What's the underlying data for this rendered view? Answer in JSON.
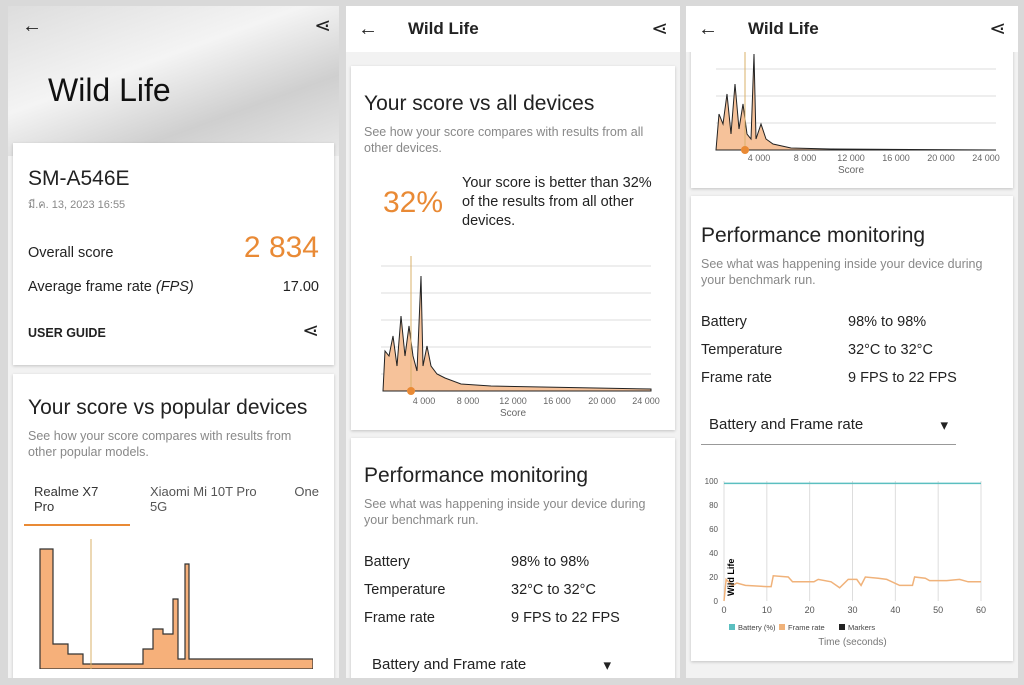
{
  "app_title": "Wild Life",
  "icons": {
    "back": "arrow-left-icon",
    "share": "share-icon"
  },
  "colors": {
    "accent": "#e98a35",
    "battery": "#5bbfc0",
    "frame_rate": "#f0b27a"
  },
  "result": {
    "device": "SM-A546E",
    "date": "มี.ค. 13, 2023 16:55",
    "overall_label": "Overall score",
    "overall_value": "2 834",
    "fps_label": "Average frame rate",
    "fps_unit": "(FPS)",
    "fps_value": "17.00",
    "user_guide": "USER GUIDE"
  },
  "popular": {
    "title": "Your score vs popular devices",
    "subtitle": "See how your score compares with results from other popular models.",
    "tabs": [
      "Realme X7 Pro",
      "Xiaomi Mi 10T Pro 5G",
      "One"
    ]
  },
  "all_devices": {
    "title": "Your score vs all devices",
    "subtitle": "See how your score compares with results from all other devices.",
    "percent": "32%",
    "text": "Your score is better than 32% of the results from all other devices.",
    "x_ticks": [
      "4 000",
      "8 000",
      "12 000",
      "16 000",
      "20 000",
      "24 000"
    ],
    "x_label": "Score"
  },
  "performance": {
    "title": "Performance monitoring",
    "subtitle": "See what was happening inside your device during your benchmark run.",
    "rows": [
      {
        "label": "Battery",
        "value": "98% to 98%"
      },
      {
        "label": "Temperature",
        "value": "32°C to 32°C"
      },
      {
        "label": "Frame rate",
        "value": "9 FPS to 22 FPS"
      }
    ],
    "dropdown": "Battery and Frame rate"
  },
  "perf_chart": {
    "y_ticks": [
      "100",
      "80",
      "60",
      "40",
      "20",
      "0"
    ],
    "x_ticks": [
      "0",
      "10",
      "20",
      "30",
      "40",
      "50",
      "60"
    ],
    "x_label": "Time (seconds)",
    "marker": "Wild Life",
    "legend": [
      "Battery (%)",
      "Frame rate",
      "Markers"
    ],
    "battery": [
      [
        0,
        98
      ],
      [
        60,
        98
      ]
    ],
    "frame_rate": [
      [
        0,
        0
      ],
      [
        0.5,
        18
      ],
      [
        2,
        13
      ],
      [
        3,
        15
      ],
      [
        5,
        13
      ],
      [
        10,
        12
      ],
      [
        11,
        12
      ],
      [
        11.5,
        21
      ],
      [
        15,
        20
      ],
      [
        16,
        16
      ],
      [
        21,
        16
      ],
      [
        22,
        18
      ],
      [
        25,
        16
      ],
      [
        27,
        11
      ],
      [
        29,
        18
      ],
      [
        31,
        18
      ],
      [
        32,
        13
      ],
      [
        33,
        20
      ],
      [
        36,
        19
      ],
      [
        38,
        18
      ],
      [
        41,
        13
      ],
      [
        44,
        13
      ],
      [
        44.5,
        20
      ],
      [
        47,
        19
      ],
      [
        48,
        17
      ],
      [
        52,
        17
      ],
      [
        55,
        18
      ],
      [
        57,
        16
      ],
      [
        60,
        16
      ]
    ]
  }
}
